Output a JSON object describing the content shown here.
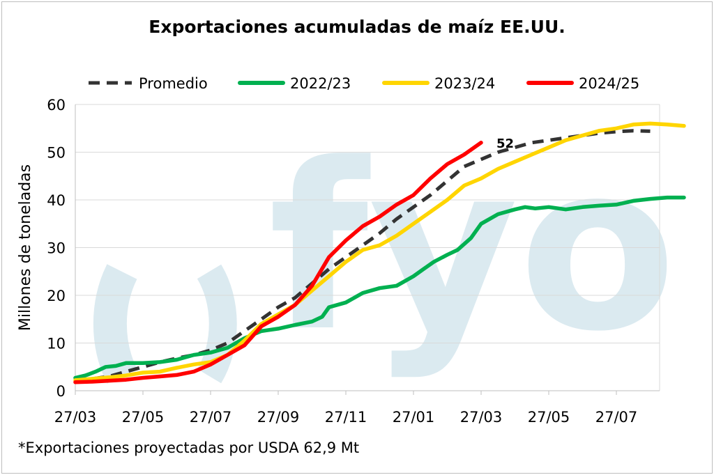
{
  "chart_data": {
    "type": "line",
    "title": "Exportaciones acumuladas de maíz EE.UU.",
    "ylabel": "Millones de toneladas",
    "xlabel": "",
    "ylim": [
      0,
      60
    ],
    "yticks": [
      "0",
      "10",
      "20",
      "30",
      "40",
      "50",
      "60"
    ],
    "xlim": [
      0,
      17.5
    ],
    "xticks": [
      "27/03",
      "27/05",
      "27/07",
      "27/09",
      "27/11",
      "27/01",
      "27/03",
      "27/05",
      "27/07"
    ],
    "x_unit_note": "weeks marked every 2 months",
    "legend_position": "top",
    "grid": true,
    "series": [
      {
        "name": "Promedio",
        "color": "#333333",
        "style": "dashed",
        "points": [
          [
            0,
            2.0
          ],
          [
            0.5,
            2.5
          ],
          [
            1.0,
            3.0
          ],
          [
            1.5,
            4.0
          ],
          [
            2.0,
            5.0
          ],
          [
            2.5,
            6.0
          ],
          [
            3.0,
            6.8
          ],
          [
            3.5,
            7.5
          ],
          [
            4.0,
            8.5
          ],
          [
            4.5,
            10.0
          ],
          [
            5.0,
            12.5
          ],
          [
            5.5,
            15.0
          ],
          [
            6.0,
            17.5
          ],
          [
            6.5,
            19.5
          ],
          [
            7.0,
            22.5
          ],
          [
            7.5,
            25.5
          ],
          [
            8.0,
            28.0
          ],
          [
            8.5,
            30.5
          ],
          [
            9.0,
            33.0
          ],
          [
            9.5,
            36.0
          ],
          [
            10.0,
            38.5
          ],
          [
            10.5,
            41.0
          ],
          [
            11.0,
            44.0
          ],
          [
            11.5,
            47.0
          ],
          [
            12.0,
            48.5
          ],
          [
            12.5,
            50.0
          ],
          [
            13.0,
            51.0
          ],
          [
            13.5,
            52.0
          ],
          [
            14.0,
            52.5
          ],
          [
            14.5,
            53.0
          ],
          [
            15.0,
            53.5
          ],
          [
            15.5,
            54.0
          ],
          [
            16.0,
            54.3
          ],
          [
            16.5,
            54.5
          ],
          [
            17.0,
            54.4
          ]
        ]
      },
      {
        "name": "2022/23",
        "color": "#00b050",
        "style": "solid",
        "points": [
          [
            0,
            2.7
          ],
          [
            0.3,
            3.2
          ],
          [
            0.6,
            4.0
          ],
          [
            0.9,
            5.0
          ],
          [
            1.2,
            5.2
          ],
          [
            1.5,
            5.8
          ],
          [
            2.0,
            5.8
          ],
          [
            2.5,
            6.0
          ],
          [
            3.0,
            6.5
          ],
          [
            3.5,
            7.5
          ],
          [
            4.0,
            8.0
          ],
          [
            4.5,
            9.0
          ],
          [
            5.0,
            11.0
          ],
          [
            5.5,
            12.5
          ],
          [
            6.0,
            13.0
          ],
          [
            6.5,
            13.8
          ],
          [
            7.0,
            14.5
          ],
          [
            7.3,
            15.5
          ],
          [
            7.5,
            17.5
          ],
          [
            8.0,
            18.5
          ],
          [
            8.5,
            20.5
          ],
          [
            9.0,
            21.5
          ],
          [
            9.5,
            22.0
          ],
          [
            10.0,
            24.0
          ],
          [
            10.3,
            25.5
          ],
          [
            10.6,
            27.0
          ],
          [
            11.0,
            28.5
          ],
          [
            11.3,
            29.5
          ],
          [
            11.7,
            32.0
          ],
          [
            12.0,
            35.0
          ],
          [
            12.5,
            37.0
          ],
          [
            13.0,
            38.0
          ],
          [
            13.3,
            38.5
          ],
          [
            13.6,
            38.2
          ],
          [
            14.0,
            38.5
          ],
          [
            14.5,
            38.0
          ],
          [
            15.0,
            38.5
          ],
          [
            15.5,
            38.8
          ],
          [
            16.0,
            39.0
          ],
          [
            16.5,
            39.8
          ],
          [
            17.0,
            40.2
          ],
          [
            17.5,
            40.5
          ],
          [
            18.0,
            40.5
          ]
        ]
      },
      {
        "name": "2023/24",
        "color": "#ffd500",
        "style": "solid",
        "points": [
          [
            0,
            2.2
          ],
          [
            0.5,
            2.5
          ],
          [
            1.0,
            2.8
          ],
          [
            1.5,
            3.2
          ],
          [
            2.0,
            3.8
          ],
          [
            2.5,
            4.0
          ],
          [
            3.0,
            4.8
          ],
          [
            3.5,
            5.5
          ],
          [
            4.0,
            6.0
          ],
          [
            4.5,
            7.5
          ],
          [
            5.0,
            10.5
          ],
          [
            5.5,
            14.0
          ],
          [
            6.0,
            16.0
          ],
          [
            6.5,
            18.0
          ],
          [
            7.0,
            21.0
          ],
          [
            7.5,
            24.0
          ],
          [
            8.0,
            27.0
          ],
          [
            8.5,
            29.5
          ],
          [
            9.0,
            30.5
          ],
          [
            9.5,
            32.5
          ],
          [
            10.0,
            35.0
          ],
          [
            10.5,
            37.5
          ],
          [
            11.0,
            40.0
          ],
          [
            11.5,
            43.0
          ],
          [
            12.0,
            44.5
          ],
          [
            12.5,
            46.5
          ],
          [
            13.0,
            48.0
          ],
          [
            13.5,
            49.5
          ],
          [
            14.0,
            51.0
          ],
          [
            14.5,
            52.5
          ],
          [
            15.0,
            53.5
          ],
          [
            15.5,
            54.5
          ],
          [
            16.0,
            55.0
          ],
          [
            16.5,
            55.8
          ],
          [
            17.0,
            56.0
          ],
          [
            17.5,
            55.8
          ],
          [
            18.0,
            55.5
          ]
        ]
      },
      {
        "name": "2024/25",
        "color": "#ff0000",
        "style": "solid",
        "points": [
          [
            0,
            1.8
          ],
          [
            0.5,
            1.9
          ],
          [
            1.0,
            2.1
          ],
          [
            1.5,
            2.3
          ],
          [
            2.0,
            2.7
          ],
          [
            2.5,
            3.0
          ],
          [
            3.0,
            3.3
          ],
          [
            3.5,
            4.0
          ],
          [
            4.0,
            5.5
          ],
          [
            4.5,
            7.5
          ],
          [
            5.0,
            9.5
          ],
          [
            5.5,
            13.5
          ],
          [
            6.0,
            15.5
          ],
          [
            6.5,
            18.0
          ],
          [
            7.0,
            22.0
          ],
          [
            7.5,
            28.0
          ],
          [
            8.0,
            31.5
          ],
          [
            8.5,
            34.5
          ],
          [
            9.0,
            36.5
          ],
          [
            9.5,
            39.0
          ],
          [
            10.0,
            41.0
          ],
          [
            10.5,
            44.5
          ],
          [
            11.0,
            47.5
          ],
          [
            11.5,
            49.5
          ],
          [
            12.0,
            52.0
          ]
        ]
      }
    ],
    "annotations": [
      {
        "text": "52",
        "at_series": "2024/25",
        "at_index": 24
      }
    ]
  },
  "watermark": "fyo",
  "footnote": "*Exportaciones proyectadas por USDA 62,9 Mt"
}
